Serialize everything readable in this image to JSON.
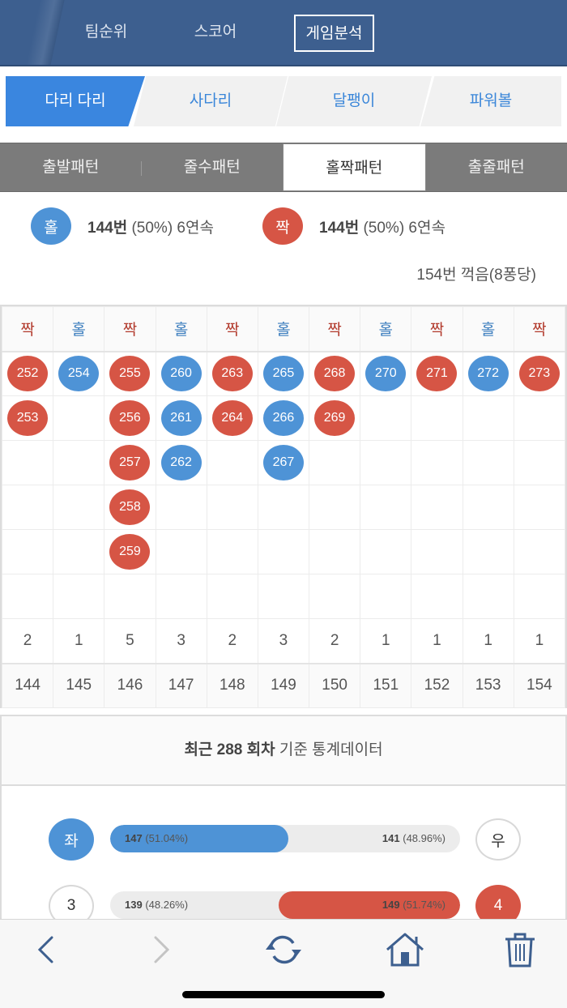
{
  "topnav": {
    "items": [
      {
        "label": "팀순위",
        "active": false
      },
      {
        "label": "스코어",
        "active": false
      },
      {
        "label": "게임분석",
        "active": true
      }
    ]
  },
  "game_tabs": [
    {
      "label": "다리 다리",
      "active": true
    },
    {
      "label": "사다리",
      "active": false
    },
    {
      "label": "달팽이",
      "active": false
    },
    {
      "label": "파워볼",
      "active": false
    }
  ],
  "pattern_tabs": [
    {
      "label": "출발패턴",
      "active": false
    },
    {
      "label": "줄수패턴",
      "active": false
    },
    {
      "label": "홀짝패턴",
      "active": true
    },
    {
      "label": "출줄패턴",
      "active": false
    }
  ],
  "summary": {
    "odd": {
      "badge": "홀",
      "count": "144번",
      "rest": " (50%) 6연속"
    },
    "even": {
      "badge": "짝",
      "count": "144번",
      "rest": " (50%) 6연속"
    },
    "catch_text": "154번 꺽음(8퐁당)"
  },
  "grid": {
    "columns": [
      {
        "type": "짝",
        "kind": "even",
        "balls": [
          "252",
          "253"
        ],
        "count": "2",
        "round": "144"
      },
      {
        "type": "홀",
        "kind": "odd",
        "balls": [
          "254"
        ],
        "count": "1",
        "round": "145"
      },
      {
        "type": "짝",
        "kind": "even",
        "balls": [
          "255",
          "256",
          "257",
          "258",
          "259"
        ],
        "count": "5",
        "round": "146"
      },
      {
        "type": "홀",
        "kind": "odd",
        "balls": [
          "260",
          "261",
          "262"
        ],
        "count": "3",
        "round": "147"
      },
      {
        "type": "짝",
        "kind": "even",
        "balls": [
          "263",
          "264"
        ],
        "count": "2",
        "round": "148"
      },
      {
        "type": "홀",
        "kind": "odd",
        "balls": [
          "265",
          "266",
          "267"
        ],
        "count": "3",
        "round": "149"
      },
      {
        "type": "짝",
        "kind": "even",
        "balls": [
          "268",
          "269"
        ],
        "count": "2",
        "round": "150"
      },
      {
        "type": "홀",
        "kind": "odd",
        "balls": [
          "270"
        ],
        "count": "1",
        "round": "151"
      },
      {
        "type": "짝",
        "kind": "even",
        "balls": [
          "271"
        ],
        "count": "1",
        "round": "152"
      },
      {
        "type": "홀",
        "kind": "odd",
        "balls": [
          "272"
        ],
        "count": "1",
        "round": "153"
      },
      {
        "type": "짝",
        "kind": "even",
        "balls": [
          "273"
        ],
        "count": "1",
        "round": "154"
      }
    ],
    "ball_rows": 6
  },
  "stats": {
    "title_bold": "최근 288 회차",
    "title_rest": " 기준 통계데이터",
    "rows": [
      {
        "left_label": "좌",
        "left_style": "blue",
        "right_label": "우",
        "right_style": "white",
        "left_count": "147",
        "left_pct": " (51.04%)",
        "right_count": "141",
        "right_pct": " (48.96%)",
        "fill_side": "left",
        "fill_color": "blue",
        "fill_pct": 51.04
      },
      {
        "left_label": "3",
        "left_style": "white",
        "right_label": "4",
        "right_style": "red",
        "left_count": "139",
        "left_pct": " (48.26%)",
        "right_count": "149",
        "right_pct": " (51.74%)",
        "fill_side": "right",
        "fill_color": "red",
        "fill_pct": 51.74
      }
    ]
  },
  "bottombar": {
    "buttons": [
      "back",
      "forward",
      "refresh",
      "home",
      "trash"
    ]
  },
  "colors": {
    "header_bg": "#3d5f8f",
    "accent_blue": "#3a86df",
    "odd_blue": "#4e93d6",
    "even_red": "#d65545",
    "tab_gray": "#7b7b7b"
  }
}
